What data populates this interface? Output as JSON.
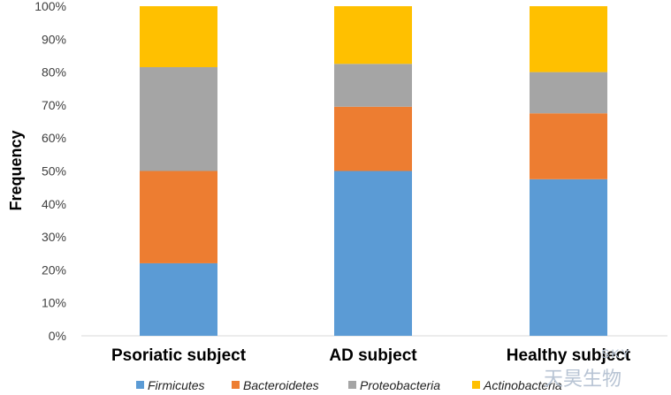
{
  "chart_data": {
    "type": "bar",
    "stacked": true,
    "categories": [
      "Psoriatic subject",
      "AD subject",
      "Healthy subject"
    ],
    "series": [
      {
        "name": "Firmicutes",
        "color": "#5b9bd5",
        "values": [
          22,
          50,
          47.5
        ]
      },
      {
        "name": "Bacteroidetes",
        "color": "#ed7d31",
        "values": [
          28,
          19.5,
          20
        ]
      },
      {
        "name": "Proteobacteria",
        "color": "#a5a5a5",
        "values": [
          31.5,
          13,
          12.5
        ]
      },
      {
        "name": "Actinobacteria",
        "color": "#ffc000",
        "values": [
          18.5,
          17.5,
          20
        ]
      }
    ],
    "ylabel": "Frequency",
    "xlabel": "",
    "ylim": [
      0,
      100
    ],
    "yticks": [
      "0%",
      "10%",
      "20%",
      "30%",
      "40%",
      "50%",
      "60%",
      "70%",
      "80%",
      "90%",
      "100%"
    ],
    "grid": false,
    "legend_position": "bottom"
  },
  "watermark": {
    "latin": "SKY",
    "chinese": "天昊生物"
  }
}
